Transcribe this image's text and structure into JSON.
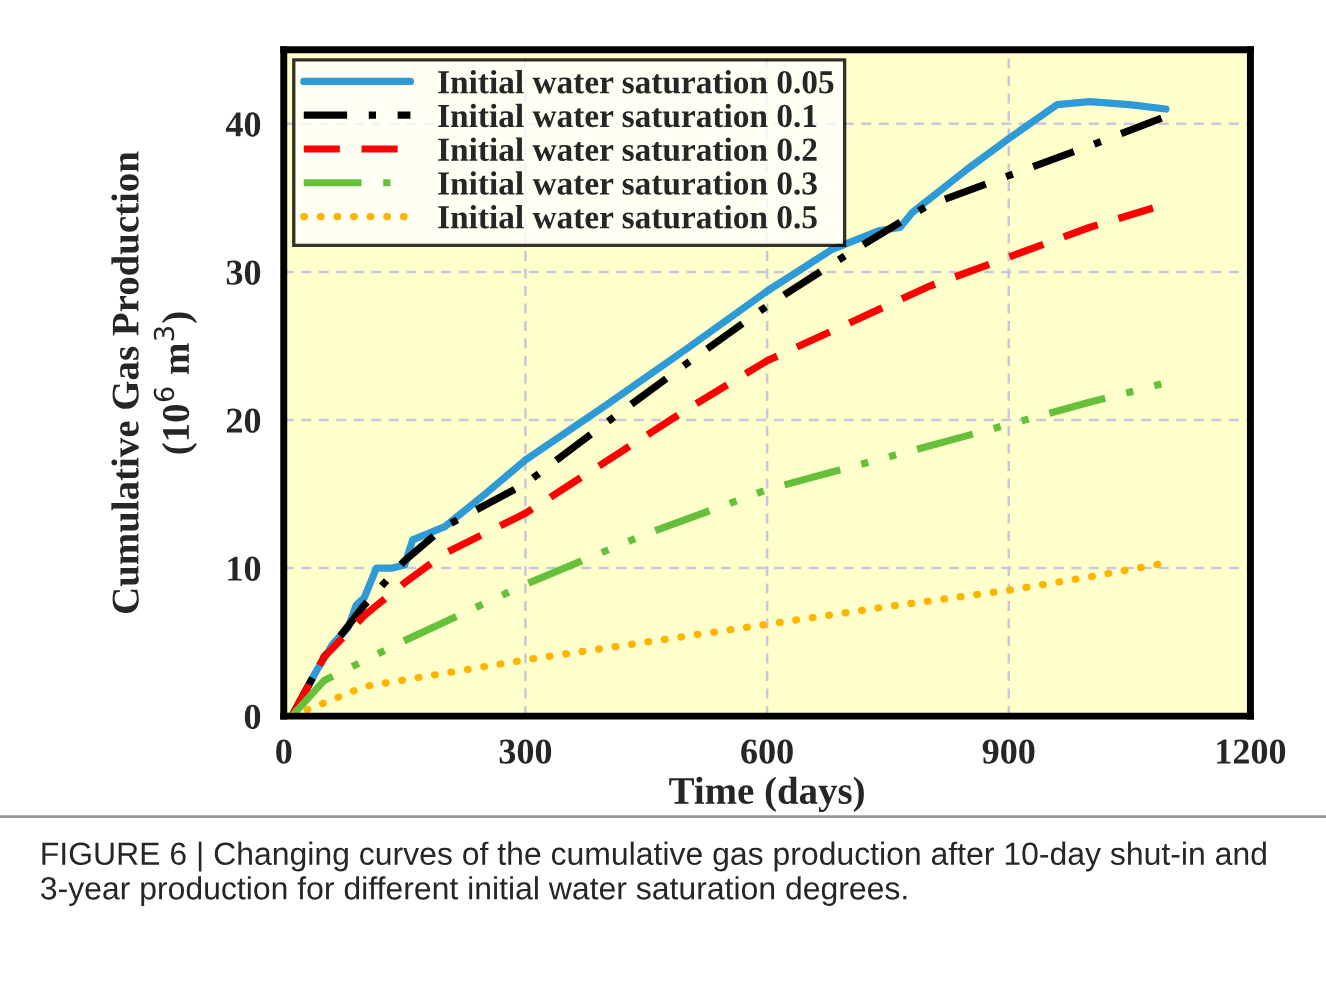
{
  "chart_data": {
    "type": "line",
    "xlabel": "Time (days)",
    "ylabel": "Cumulative Gas Production\n(10$^{6}$ m$^{3}$)",
    "xlim": [
      0,
      1200
    ],
    "xticks": [
      0,
      300,
      600,
      900,
      1200
    ],
    "ylim": [
      0,
      45
    ],
    "yticks": [
      0,
      10,
      20,
      30,
      40
    ],
    "grid": true,
    "legend": "top left",
    "series": [
      {
        "name": "Initial water saturation 0.05",
        "color": "#2e9bd6",
        "line_style": "solid",
        "x": [
          10,
          20,
          40,
          60,
          80,
          90,
          100,
          115,
          135,
          150,
          160,
          200,
          250,
          300,
          400,
          500,
          600,
          680,
          740,
          765,
          780,
          850,
          900,
          960,
          1000,
          1050,
          1095
        ],
        "values": [
          0,
          null,
          3,
          4.8,
          6,
          7.5,
          8,
          10,
          10,
          10.2,
          11.9,
          12.8,
          15,
          17.3,
          21,
          24.8,
          28.7,
          31.5,
          32.8,
          33,
          34,
          37,
          39,
          41.3,
          41.5,
          41.3,
          41
        ]
      },
      {
        "name": "Initial water saturation 0.1",
        "color": "#000000",
        "line_style": "dashdot",
        "x": [
          10,
          50,
          100,
          150,
          200,
          300,
          400,
          500,
          600,
          700,
          800,
          900,
          1000,
          1095
        ],
        "values": [
          0,
          4,
          7.5,
          10.5,
          12.8,
          15.7,
          19.8,
          23.8,
          27.7,
          31.2,
          34.5,
          36.5,
          38.5,
          40.5
        ]
      },
      {
        "name": "Initial water saturation 0.2",
        "color": "#ff0000",
        "line_style": "dashed",
        "x": [
          10,
          50,
          100,
          150,
          200,
          300,
          400,
          500,
          600,
          700,
          800,
          900,
          1000,
          1090
        ],
        "values": [
          0,
          4,
          6.8,
          9,
          11,
          13.7,
          17.2,
          20.7,
          24,
          26.5,
          29,
          31,
          33,
          34.5
        ]
      },
      {
        "name": "Initial water saturation 0.3",
        "color": "#66c03c",
        "line_style": "dashdotdot",
        "x": [
          10,
          50,
          150,
          300,
          450,
          600,
          750,
          900,
          1000,
          1095
        ],
        "values": [
          0,
          2.4,
          5.1,
          8.9,
          12.3,
          15.3,
          17.5,
          19.7,
          21.2,
          22.5
        ]
      },
      {
        "name": "Initial water saturation 0.5",
        "color": "#ffb400",
        "line_style": "dotted",
        "x": [
          10,
          100,
          300,
          450,
          600,
          750,
          900,
          1000,
          1090
        ],
        "values": [
          0,
          2,
          3.8,
          5,
          6.2,
          7.4,
          8.5,
          9.4,
          10.3
        ]
      }
    ],
    "annotations": [
      "FIGURE 6 | Changing curves of the cumulative gas production after 10-day shut-in and 3-year production for different initial water saturation degrees."
    ]
  }
}
